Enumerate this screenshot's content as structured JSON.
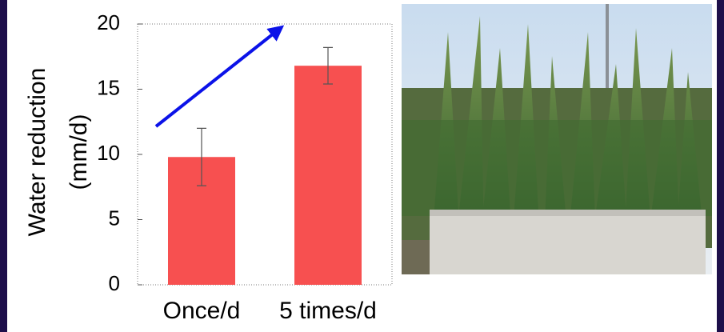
{
  "chart_data": {
    "type": "bar",
    "ylabel": [
      "Water reduction",
      "(mm/d)"
    ],
    "categories": [
      "Once/d",
      "5 times/d"
    ],
    "values": [
      9.8,
      16.8
    ],
    "errors": [
      2.2,
      1.4
    ],
    "color": "#f75050",
    "ylim": [
      0,
      20
    ],
    "yticks": [
      0,
      5,
      10,
      15,
      20
    ]
  }
}
